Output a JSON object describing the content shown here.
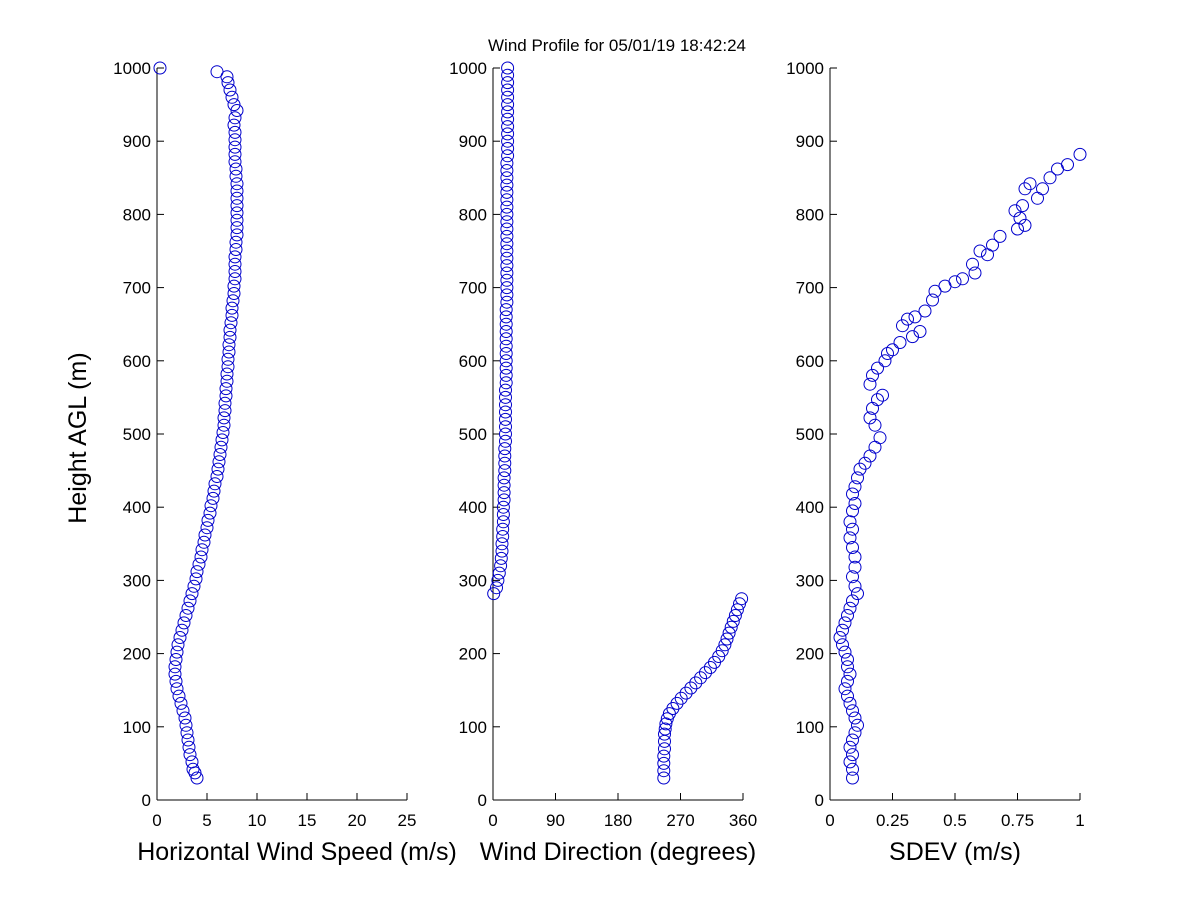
{
  "figure": {
    "title": "Wind Profile for  05/01/19 18:42:24",
    "ylabel": "Height AGL (m)",
    "marker_color": "#0000cc"
  },
  "chart_data": [
    {
      "type": "scatter",
      "xlabel": "Horizontal Wind Speed (m/s)",
      "ylabel": "Height AGL (m)",
      "xlim": [
        0,
        25
      ],
      "ylim": [
        0,
        1000
      ],
      "xticks": [
        "0",
        "5",
        "10",
        "15",
        "20",
        "25"
      ],
      "yticks": [
        "0",
        "100",
        "200",
        "300",
        "400",
        "500",
        "600",
        "700",
        "800",
        "900",
        "1000"
      ],
      "grid": false,
      "marker": "circle",
      "points": [
        [
          0.3,
          1000
        ],
        [
          6.0,
          995
        ],
        [
          7.0,
          988
        ],
        [
          7.1,
          980
        ],
        [
          7.3,
          970
        ],
        [
          7.5,
          960
        ],
        [
          7.7,
          950
        ],
        [
          8.0,
          942
        ],
        [
          7.8,
          932
        ],
        [
          7.7,
          922
        ],
        [
          7.8,
          912
        ],
        [
          7.8,
          902
        ],
        [
          7.8,
          892
        ],
        [
          7.8,
          882
        ],
        [
          7.8,
          872
        ],
        [
          7.9,
          862
        ],
        [
          7.9,
          852
        ],
        [
          8.0,
          842
        ],
        [
          8.0,
          832
        ],
        [
          8.0,
          822
        ],
        [
          8.0,
          812
        ],
        [
          8.0,
          802
        ],
        [
          8.0,
          792
        ],
        [
          8.0,
          782
        ],
        [
          8.0,
          772
        ],
        [
          7.9,
          762
        ],
        [
          7.9,
          752
        ],
        [
          7.8,
          742
        ],
        [
          7.8,
          732
        ],
        [
          7.8,
          722
        ],
        [
          7.8,
          712
        ],
        [
          7.7,
          702
        ],
        [
          7.7,
          692
        ],
        [
          7.6,
          682
        ],
        [
          7.5,
          672
        ],
        [
          7.5,
          662
        ],
        [
          7.4,
          652
        ],
        [
          7.3,
          642
        ],
        [
          7.3,
          632
        ],
        [
          7.2,
          622
        ],
        [
          7.2,
          612
        ],
        [
          7.1,
          602
        ],
        [
          7.1,
          592
        ],
        [
          7.0,
          582
        ],
        [
          7.0,
          572
        ],
        [
          6.9,
          562
        ],
        [
          6.9,
          552
        ],
        [
          6.8,
          542
        ],
        [
          6.8,
          532
        ],
        [
          6.7,
          522
        ],
        [
          6.7,
          512
        ],
        [
          6.6,
          502
        ],
        [
          6.5,
          492
        ],
        [
          6.4,
          482
        ],
        [
          6.3,
          472
        ],
        [
          6.2,
          462
        ],
        [
          6.1,
          452
        ],
        [
          6.0,
          442
        ],
        [
          5.8,
          432
        ],
        [
          5.7,
          422
        ],
        [
          5.6,
          412
        ],
        [
          5.4,
          402
        ],
        [
          5.3,
          392
        ],
        [
          5.1,
          382
        ],
        [
          5.0,
          372
        ],
        [
          4.8,
          362
        ],
        [
          4.7,
          352
        ],
        [
          4.5,
          342
        ],
        [
          4.4,
          332
        ],
        [
          4.2,
          322
        ],
        [
          4.0,
          312
        ],
        [
          3.9,
          302
        ],
        [
          3.7,
          292
        ],
        [
          3.5,
          282
        ],
        [
          3.3,
          272
        ],
        [
          3.1,
          262
        ],
        [
          2.9,
          252
        ],
        [
          2.7,
          242
        ],
        [
          2.5,
          232
        ],
        [
          2.3,
          222
        ],
        [
          2.1,
          212
        ],
        [
          2.0,
          202
        ],
        [
          1.9,
          192
        ],
        [
          1.8,
          182
        ],
        [
          1.8,
          172
        ],
        [
          1.9,
          162
        ],
        [
          2.0,
          152
        ],
        [
          2.2,
          142
        ],
        [
          2.4,
          132
        ],
        [
          2.6,
          122
        ],
        [
          2.8,
          112
        ],
        [
          2.9,
          102
        ],
        [
          3.0,
          92
        ],
        [
          3.1,
          82
        ],
        [
          3.2,
          72
        ],
        [
          3.3,
          62
        ],
        [
          3.5,
          52
        ],
        [
          3.6,
          42
        ],
        [
          3.8,
          37
        ],
        [
          4.0,
          30
        ]
      ]
    },
    {
      "type": "scatter",
      "xlabel": "Wind Direction (degrees)",
      "xlim": [
        0,
        360
      ],
      "ylim": [
        0,
        1000
      ],
      "xticks": [
        "0",
        "90",
        "180",
        "270",
        "360"
      ],
      "yticks": [
        "0",
        "100",
        "200",
        "300",
        "400",
        "500",
        "600",
        "700",
        "800",
        "900",
        "1000"
      ],
      "grid": false,
      "marker": "circle",
      "points": [
        [
          21,
          1000
        ],
        [
          21,
          990
        ],
        [
          21,
          980
        ],
        [
          21,
          970
        ],
        [
          21,
          960
        ],
        [
          21,
          950
        ],
        [
          21,
          940
        ],
        [
          21,
          930
        ],
        [
          21,
          920
        ],
        [
          21,
          910
        ],
        [
          21,
          900
        ],
        [
          21,
          890
        ],
        [
          21,
          880
        ],
        [
          20,
          870
        ],
        [
          20,
          860
        ],
        [
          20,
          850
        ],
        [
          20,
          840
        ],
        [
          20,
          830
        ],
        [
          20,
          820
        ],
        [
          20,
          810
        ],
        [
          20,
          800
        ],
        [
          20,
          790
        ],
        [
          20,
          780
        ],
        [
          20,
          770
        ],
        [
          20,
          760
        ],
        [
          20,
          750
        ],
        [
          20,
          740
        ],
        [
          20,
          730
        ],
        [
          20,
          720
        ],
        [
          20,
          710
        ],
        [
          20,
          700
        ],
        [
          20,
          690
        ],
        [
          20,
          680
        ],
        [
          19,
          670
        ],
        [
          19,
          660
        ],
        [
          19,
          650
        ],
        [
          19,
          640
        ],
        [
          19,
          630
        ],
        [
          19,
          620
        ],
        [
          19,
          610
        ],
        [
          19,
          600
        ],
        [
          19,
          590
        ],
        [
          19,
          580
        ],
        [
          19,
          570
        ],
        [
          18,
          560
        ],
        [
          18,
          550
        ],
        [
          18,
          540
        ],
        [
          18,
          530
        ],
        [
          18,
          520
        ],
        [
          18,
          510
        ],
        [
          18,
          500
        ],
        [
          18,
          490
        ],
        [
          17,
          480
        ],
        [
          17,
          470
        ],
        [
          17,
          460
        ],
        [
          17,
          450
        ],
        [
          16,
          440
        ],
        [
          16,
          430
        ],
        [
          16,
          420
        ],
        [
          16,
          410
        ],
        [
          15,
          400
        ],
        [
          15,
          390
        ],
        [
          15,
          380
        ],
        [
          14,
          370
        ],
        [
          14,
          360
        ],
        [
          13,
          350
        ],
        [
          13,
          340
        ],
        [
          12,
          330
        ],
        [
          11,
          320
        ],
        [
          9,
          310
        ],
        [
          7,
          300
        ],
        [
          5,
          290
        ],
        [
          1,
          282
        ],
        [
          358,
          275
        ],
        [
          355,
          268
        ],
        [
          352,
          260
        ],
        [
          349,
          252
        ],
        [
          346,
          244
        ],
        [
          343,
          236
        ],
        [
          340,
          228
        ],
        [
          337,
          220
        ],
        [
          334,
          212
        ],
        [
          330,
          204
        ],
        [
          325,
          196
        ],
        [
          319,
          188
        ],
        [
          313,
          181
        ],
        [
          306,
          174
        ],
        [
          299,
          167
        ],
        [
          292,
          160
        ],
        [
          285,
          153
        ],
        [
          278,
          146
        ],
        [
          271,
          139
        ],
        [
          265,
          132
        ],
        [
          259,
          125
        ],
        [
          254,
          118
        ],
        [
          251,
          111
        ],
        [
          249,
          104
        ],
        [
          248,
          97
        ],
        [
          247,
          90
        ],
        [
          247,
          80
        ],
        [
          247,
          70
        ],
        [
          246,
          60
        ],
        [
          246,
          50
        ],
        [
          246,
          40
        ],
        [
          246,
          30
        ]
      ]
    },
    {
      "type": "scatter",
      "xlabel": "SDEV  (m/s)",
      "xlim": [
        0,
        1
      ],
      "ylim": [
        0,
        1000
      ],
      "xticks": [
        "0",
        "0.25",
        "0.5",
        "0.75",
        "1"
      ],
      "yticks": [
        "0",
        "100",
        "200",
        "300",
        "400",
        "500",
        "600",
        "700",
        "800",
        "900",
        "1000"
      ],
      "grid": false,
      "marker": "circle",
      "points": [
        [
          1.0,
          882
        ],
        [
          0.95,
          868
        ],
        [
          0.91,
          862
        ],
        [
          0.88,
          850
        ],
        [
          0.85,
          835
        ],
        [
          0.83,
          822
        ],
        [
          0.8,
          842
        ],
        [
          0.78,
          835
        ],
        [
          0.77,
          812
        ],
        [
          0.76,
          795
        ],
        [
          0.75,
          780
        ],
        [
          0.74,
          805
        ],
        [
          0.78,
          785
        ],
        [
          0.68,
          770
        ],
        [
          0.65,
          758
        ],
        [
          0.63,
          745
        ],
        [
          0.6,
          750
        ],
        [
          0.58,
          720
        ],
        [
          0.57,
          732
        ],
        [
          0.53,
          712
        ],
        [
          0.5,
          708
        ],
        [
          0.46,
          702
        ],
        [
          0.42,
          695
        ],
        [
          0.41,
          683
        ],
        [
          0.38,
          668
        ],
        [
          0.36,
          640
        ],
        [
          0.34,
          660
        ],
        [
          0.33,
          633
        ],
        [
          0.31,
          657
        ],
        [
          0.29,
          648
        ],
        [
          0.28,
          625
        ],
        [
          0.25,
          615
        ],
        [
          0.23,
          610
        ],
        [
          0.22,
          600
        ],
        [
          0.19,
          590
        ],
        [
          0.17,
          580
        ],
        [
          0.16,
          568
        ],
        [
          0.21,
          553
        ],
        [
          0.19,
          547
        ],
        [
          0.17,
          535
        ],
        [
          0.16,
          522
        ],
        [
          0.18,
          512
        ],
        [
          0.2,
          495
        ],
        [
          0.18,
          482
        ],
        [
          0.16,
          470
        ],
        [
          0.14,
          460
        ],
        [
          0.12,
          452
        ],
        [
          0.11,
          440
        ],
        [
          0.1,
          428
        ],
        [
          0.09,
          418
        ],
        [
          0.1,
          405
        ],
        [
          0.09,
          395
        ],
        [
          0.08,
          380
        ],
        [
          0.09,
          370
        ],
        [
          0.08,
          358
        ],
        [
          0.09,
          345
        ],
        [
          0.1,
          332
        ],
        [
          0.1,
          318
        ],
        [
          0.09,
          305
        ],
        [
          0.1,
          292
        ],
        [
          0.11,
          282
        ],
        [
          0.09,
          272
        ],
        [
          0.08,
          262
        ],
        [
          0.07,
          252
        ],
        [
          0.06,
          242
        ],
        [
          0.05,
          232
        ],
        [
          0.04,
          222
        ],
        [
          0.05,
          212
        ],
        [
          0.06,
          202
        ],
        [
          0.07,
          192
        ],
        [
          0.07,
          182
        ],
        [
          0.08,
          172
        ],
        [
          0.07,
          162
        ],
        [
          0.06,
          152
        ],
        [
          0.07,
          142
        ],
        [
          0.08,
          132
        ],
        [
          0.09,
          122
        ],
        [
          0.1,
          112
        ],
        [
          0.11,
          102
        ],
        [
          0.1,
          92
        ],
        [
          0.09,
          82
        ],
        [
          0.08,
          72
        ],
        [
          0.09,
          62
        ],
        [
          0.08,
          52
        ],
        [
          0.09,
          42
        ],
        [
          0.09,
          30
        ]
      ]
    }
  ]
}
